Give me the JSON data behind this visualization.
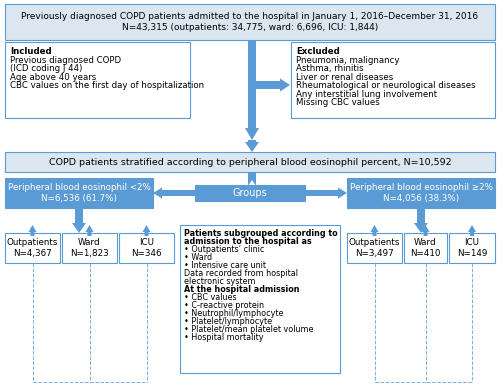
{
  "bg_color": "#ffffff",
  "border_color": "#5b9bd5",
  "blue": "#5b9bd5",
  "light_blue": "#dce6f1",
  "white": "#ffffff",
  "top_text": "Previously diagnosed COPD patients admitted to the hospital in January 1, 2016–December 31, 2016\nN=43,315 (outpatients: 34,775, ward: 6,696, ICU: 1,844)",
  "included_lines": [
    [
      "Included",
      true
    ],
    [
      "Previous diagnosed COPD",
      false
    ],
    [
      "(ICD coding J 44)",
      false
    ],
    [
      "Age above 40 years",
      false
    ],
    [
      "CBC values on the first day of hospitalization",
      false
    ]
  ],
  "excluded_lines": [
    [
      "Excluded",
      true
    ],
    [
      "Pneumonia, malignancy",
      false
    ],
    [
      "Asthma, rhinitis",
      false
    ],
    [
      "Liver or renal diseases",
      false
    ],
    [
      "Rheumatological or neurological diseases",
      false
    ],
    [
      "Any interstitial lung involvement",
      false
    ],
    [
      "Missing CBC values",
      false
    ]
  ],
  "stratified_text": "COPD patients stratified according to peripheral blood eosinophil percent, N=10,592",
  "left_group_text": "Peripheral blood eosinophil <2%\nN=6,536 (61.7%)",
  "groups_text": "Groups",
  "right_group_text": "Peripheral blood eosinophil ≥2%\nN=4,056 (38.3%)",
  "left_sub": [
    "Outpatients\nN=4,367",
    "Ward\nN=1,823",
    "ICU\nN=346"
  ],
  "right_sub": [
    "Outpatients\nN=3,497",
    "Ward\nN=410",
    "ICU\nN=149"
  ],
  "center_lines": [
    [
      "Patients subgrouped according to",
      true
    ],
    [
      "admission to the hospital as",
      true
    ],
    [
      "• Outpatients’ clinic",
      false
    ],
    [
      "• Ward",
      false
    ],
    [
      "• Intensive care unit",
      false
    ],
    [
      "Data recorded from hospital",
      false
    ],
    [
      "electronic system",
      false
    ],
    [
      "At the hospital admission",
      true
    ],
    [
      "• CBC values",
      false
    ],
    [
      "• C-reactive protein",
      false
    ],
    [
      "• Neutrophil/lymphocyte",
      false
    ],
    [
      "• Platelet/lymphocyte",
      false
    ],
    [
      "• Platelet/mean platelet volume",
      false
    ],
    [
      "• Hospital mortality",
      false
    ]
  ]
}
